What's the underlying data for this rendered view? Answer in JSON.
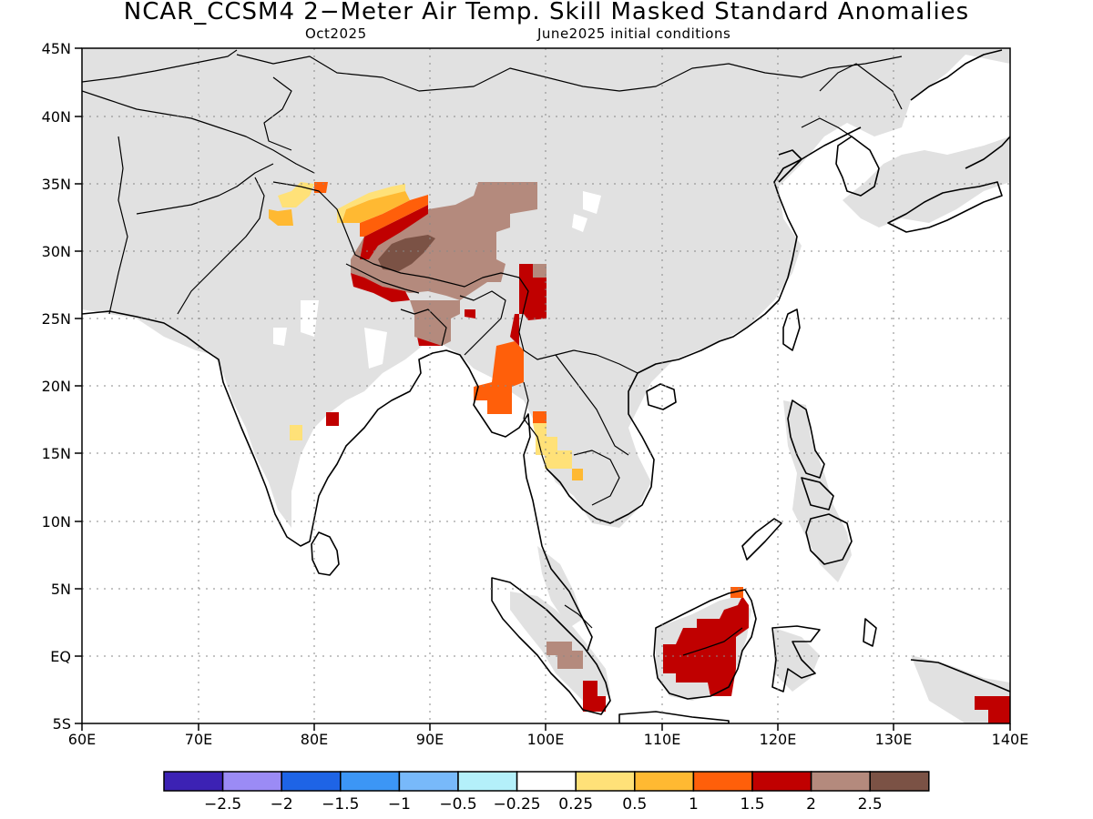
{
  "title": "NCAR_CCSM4 2−Meter Air Temp. Skill Masked Standard Anomalies",
  "subtitle_left": "Oct2025",
  "subtitle_right": "June2025 initial conditions",
  "lon_ticks": [
    "60E",
    "70E",
    "80E",
    "90E",
    "100E",
    "110E",
    "120E",
    "130E",
    "140E"
  ],
  "lat_ticks": [
    "45N",
    "40N",
    "35N",
    "30N",
    "25N",
    "20N",
    "15N",
    "10N",
    "5N",
    "EQ",
    "5S"
  ],
  "colorbar": {
    "colors": [
      "#3c22b4",
      "#9b8bf5",
      "#1e64e6",
      "#3c96f5",
      "#78b9fa",
      "#b4f0fa",
      "#ffffff",
      "#ffe178",
      "#ffb932",
      "#ff5f0a",
      "#c00000",
      "#b48a7d",
      "#7b5245"
    ],
    "labels": [
      "−2.5",
      "−2",
      "−1.5",
      "−1",
      "−0.5",
      "−0.25",
      "0.25",
      "0.5",
      "1",
      "1.5",
      "2",
      "2.5"
    ]
  },
  "chart_data": {
    "type": "heatmap",
    "region": {
      "lon_range": [
        60,
        140
      ],
      "lat_range": [
        -5,
        45
      ]
    },
    "mask_color": "#e1e1e1",
    "cells": [
      {
        "lon": 77.5,
        "lat": 33.0,
        "value": 0.5
      },
      {
        "lon": 82.5,
        "lat": 34.0,
        "value": 0.5
      },
      {
        "lon": 84.0,
        "lat": 33.0,
        "value": 1.0
      },
      {
        "lon": 85.5,
        "lat": 32.0,
        "value": 1.5
      },
      {
        "lon": 86.5,
        "lat": 30.5,
        "value": 2.0
      },
      {
        "lon": 88.0,
        "lat": 30.0,
        "value": 2.5
      },
      {
        "lon": 89.5,
        "lat": 30.5,
        "value": 2.5
      },
      {
        "lon": 91.0,
        "lat": 31.0,
        "value": 2.25
      },
      {
        "lon": 93.0,
        "lat": 30.0,
        "value": 2.25
      },
      {
        "lon": 95.5,
        "lat": 32.5,
        "value": 2.25
      },
      {
        "lon": 90.0,
        "lat": 25.5,
        "value": 2.25
      },
      {
        "lon": 85.5,
        "lat": 27.5,
        "value": 2.0
      },
      {
        "lon": 90.0,
        "lat": 27.0,
        "value": 2.0
      },
      {
        "lon": 98.0,
        "lat": 26.0,
        "value": 2.0
      },
      {
        "lon": 96.5,
        "lat": 20.0,
        "value": 1.5
      },
      {
        "lon": 81.0,
        "lat": 17.5,
        "value": 1.5
      },
      {
        "lon": 78.5,
        "lat": 16.5,
        "value": 0.5
      },
      {
        "lon": 99.5,
        "lat": 15.0,
        "value": 0.5
      },
      {
        "lon": 111.5,
        "lat": -0.5,
        "value": 2.0
      },
      {
        "lon": 114.5,
        "lat": 1.5,
        "value": 2.0
      },
      {
        "lon": 116.0,
        "lat": 4.5,
        "value": 1.5
      },
      {
        "lon": 104.0,
        "lat": -3.5,
        "value": 2.0
      },
      {
        "lon": 138.5,
        "lat": -4.0,
        "value": 2.0
      },
      {
        "lon": 102.0,
        "lat": 0.0,
        "value": 2.25
      }
    ]
  }
}
